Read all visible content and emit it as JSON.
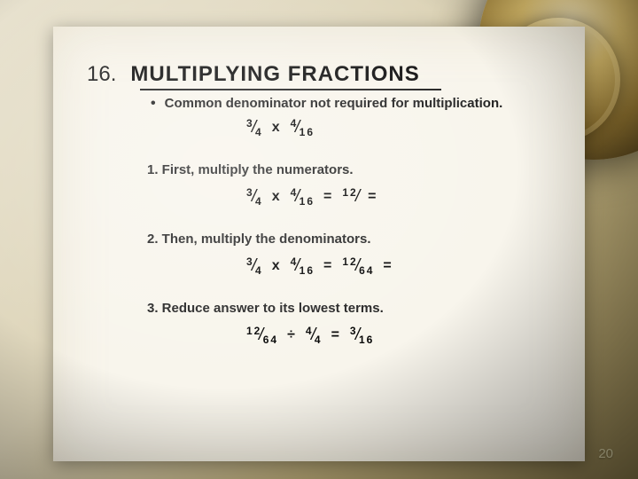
{
  "slide_number": "16.",
  "title": "MULTIPLYING  FRACTIONS",
  "intro_bullet": "Common denominator not required for multiplication.",
  "eq_intro": {
    "f1n": "3",
    "f1d": "4",
    "op": "x",
    "f2n": "4",
    "f2d": "16"
  },
  "step1": {
    "label": "1.   First, multiply the numerators.",
    "f1n": "3",
    "f1d": "4",
    "op": "x",
    "f2n": "4",
    "f2d": "16",
    "eq": "=",
    "r1n": "12",
    "r1d": "",
    "trail": "="
  },
  "step2": {
    "label": "2.   Then, multiply the denominators.",
    "f1n": "3",
    "f1d": "4",
    "op": "x",
    "f2n": "4",
    "f2d": "16",
    "eq": "=",
    "r1n": "12",
    "r1d": "64",
    "trail": "="
  },
  "step3": {
    "label": "3.   Reduce answer to its lowest terms.",
    "f1n": "12",
    "f1d": "64",
    "op": "÷",
    "f2n": "4",
    "f2d": "4",
    "eq": "=",
    "r1n": "3",
    "r1d": "16"
  },
  "page_number": "20",
  "colors": {
    "text": "#222222",
    "paper": "#f8f5ec",
    "underline": "#222222"
  }
}
